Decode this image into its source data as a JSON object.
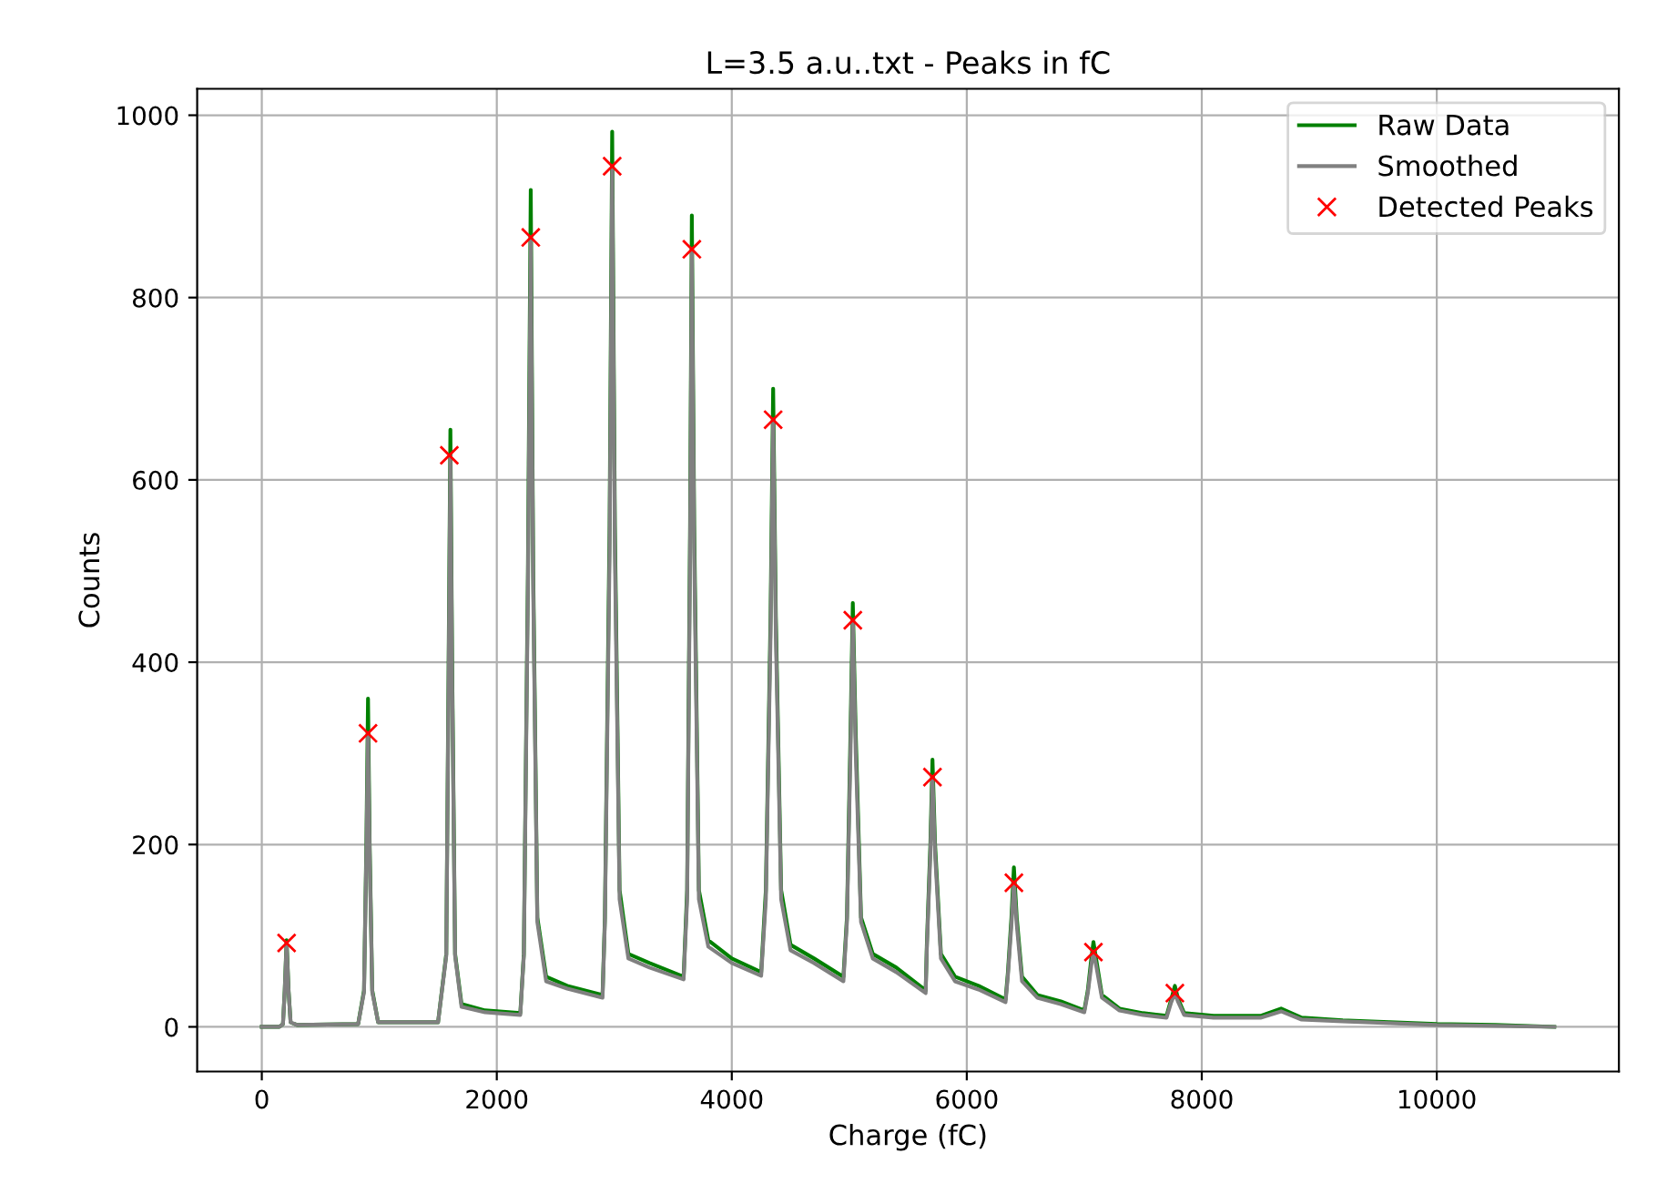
{
  "chart_data": {
    "type": "line",
    "title": "L=3.5 a.u..txt - Peaks in fC",
    "xlabel": "Charge (fC)",
    "ylabel": "Counts",
    "xlim": [
      -550,
      11550
    ],
    "ylim": [
      -49,
      1029
    ],
    "xticks": [
      0,
      2000,
      4000,
      6000,
      8000,
      10000
    ],
    "yticks": [
      0,
      200,
      400,
      600,
      800,
      1000
    ],
    "grid": true,
    "legend": "top right",
    "marker": "none",
    "line_style": "solid",
    "x": [
      0,
      150,
      180,
      195,
      211,
      228,
      245,
      300,
      820,
      870,
      890,
      904,
      918,
      940,
      990,
      1500,
      1570,
      1590,
      1605,
      1620,
      1645,
      1700,
      1900,
      2200,
      2230,
      2265,
      2289,
      2310,
      2345,
      2420,
      2600,
      2900,
      2920,
      2960,
      2982,
      3005,
      3045,
      3120,
      3300,
      3590,
      3620,
      3645,
      3660,
      3680,
      3720,
      3800,
      4000,
      4250,
      4290,
      4330,
      4352,
      4375,
      4420,
      4500,
      4700,
      4950,
      4980,
      5010,
      5030,
      5055,
      5100,
      5200,
      5400,
      5650,
      5660,
      5690,
      5708,
      5730,
      5780,
      5900,
      6100,
      6330,
      6350,
      6380,
      6401,
      6425,
      6470,
      6600,
      6800,
      7000,
      7030,
      7060,
      7078,
      7100,
      7150,
      7300,
      7500,
      7700,
      7740,
      7771,
      7800,
      7850,
      8100,
      8300,
      8500,
      8675,
      8850,
      9200,
      9600,
      10000,
      10500,
      11000
    ],
    "series": [
      {
        "name": "Raw Data",
        "color": "#008000",
        "values": [
          0,
          0,
          3,
          40,
          95,
          40,
          5,
          2,
          3,
          40,
          200,
          360,
          200,
          40,
          5,
          5,
          80,
          400,
          655,
          400,
          80,
          25,
          18,
          15,
          80,
          500,
          918,
          500,
          120,
          55,
          45,
          35,
          120,
          550,
          982,
          550,
          150,
          80,
          70,
          55,
          150,
          550,
          890,
          550,
          150,
          95,
          75,
          60,
          150,
          450,
          700,
          450,
          150,
          90,
          75,
          55,
          120,
          320,
          465,
          320,
          120,
          80,
          65,
          40,
          90,
          200,
          293,
          200,
          80,
          55,
          45,
          30,
          60,
          120,
          175,
          120,
          55,
          35,
          28,
          18,
          40,
          75,
          93,
          75,
          35,
          20,
          15,
          12,
          30,
          45,
          30,
          15,
          12,
          12,
          12,
          20,
          10,
          7,
          5,
          3,
          2,
          0
        ]
      },
      {
        "name": "Smoothed",
        "color": "#808080",
        "values": [
          0,
          0,
          3,
          38,
          92,
          38,
          5,
          2,
          3,
          38,
          190,
          322,
          190,
          38,
          5,
          5,
          78,
          380,
          627,
          380,
          78,
          22,
          16,
          13,
          78,
          480,
          866,
          480,
          115,
          50,
          42,
          32,
          115,
          520,
          944,
          520,
          140,
          75,
          65,
          52,
          140,
          520,
          853,
          520,
          140,
          88,
          70,
          56,
          140,
          430,
          666,
          430,
          140,
          84,
          70,
          50,
          115,
          300,
          446,
          300,
          115,
          75,
          60,
          37,
          85,
          190,
          274,
          190,
          75,
          50,
          41,
          27,
          56,
          112,
          158,
          112,
          50,
          32,
          25,
          16,
          37,
          68,
          82,
          68,
          32,
          18,
          13,
          10,
          27,
          37,
          27,
          13,
          10,
          10,
          10,
          17,
          8,
          6,
          4,
          2,
          1,
          0
        ]
      },
      {
        "name": "Detected Peaks",
        "type": "scatter",
        "marker": "cross",
        "color": "#ff0000",
        "x": [
          211,
          904,
          1596,
          2289,
          2982,
          3660,
          4352,
          5030,
          5708,
          6401,
          7078,
          7771
        ],
        "values": [
          92,
          322,
          627,
          866,
          944,
          853,
          666,
          446,
          274,
          158,
          82,
          37
        ]
      }
    ]
  }
}
